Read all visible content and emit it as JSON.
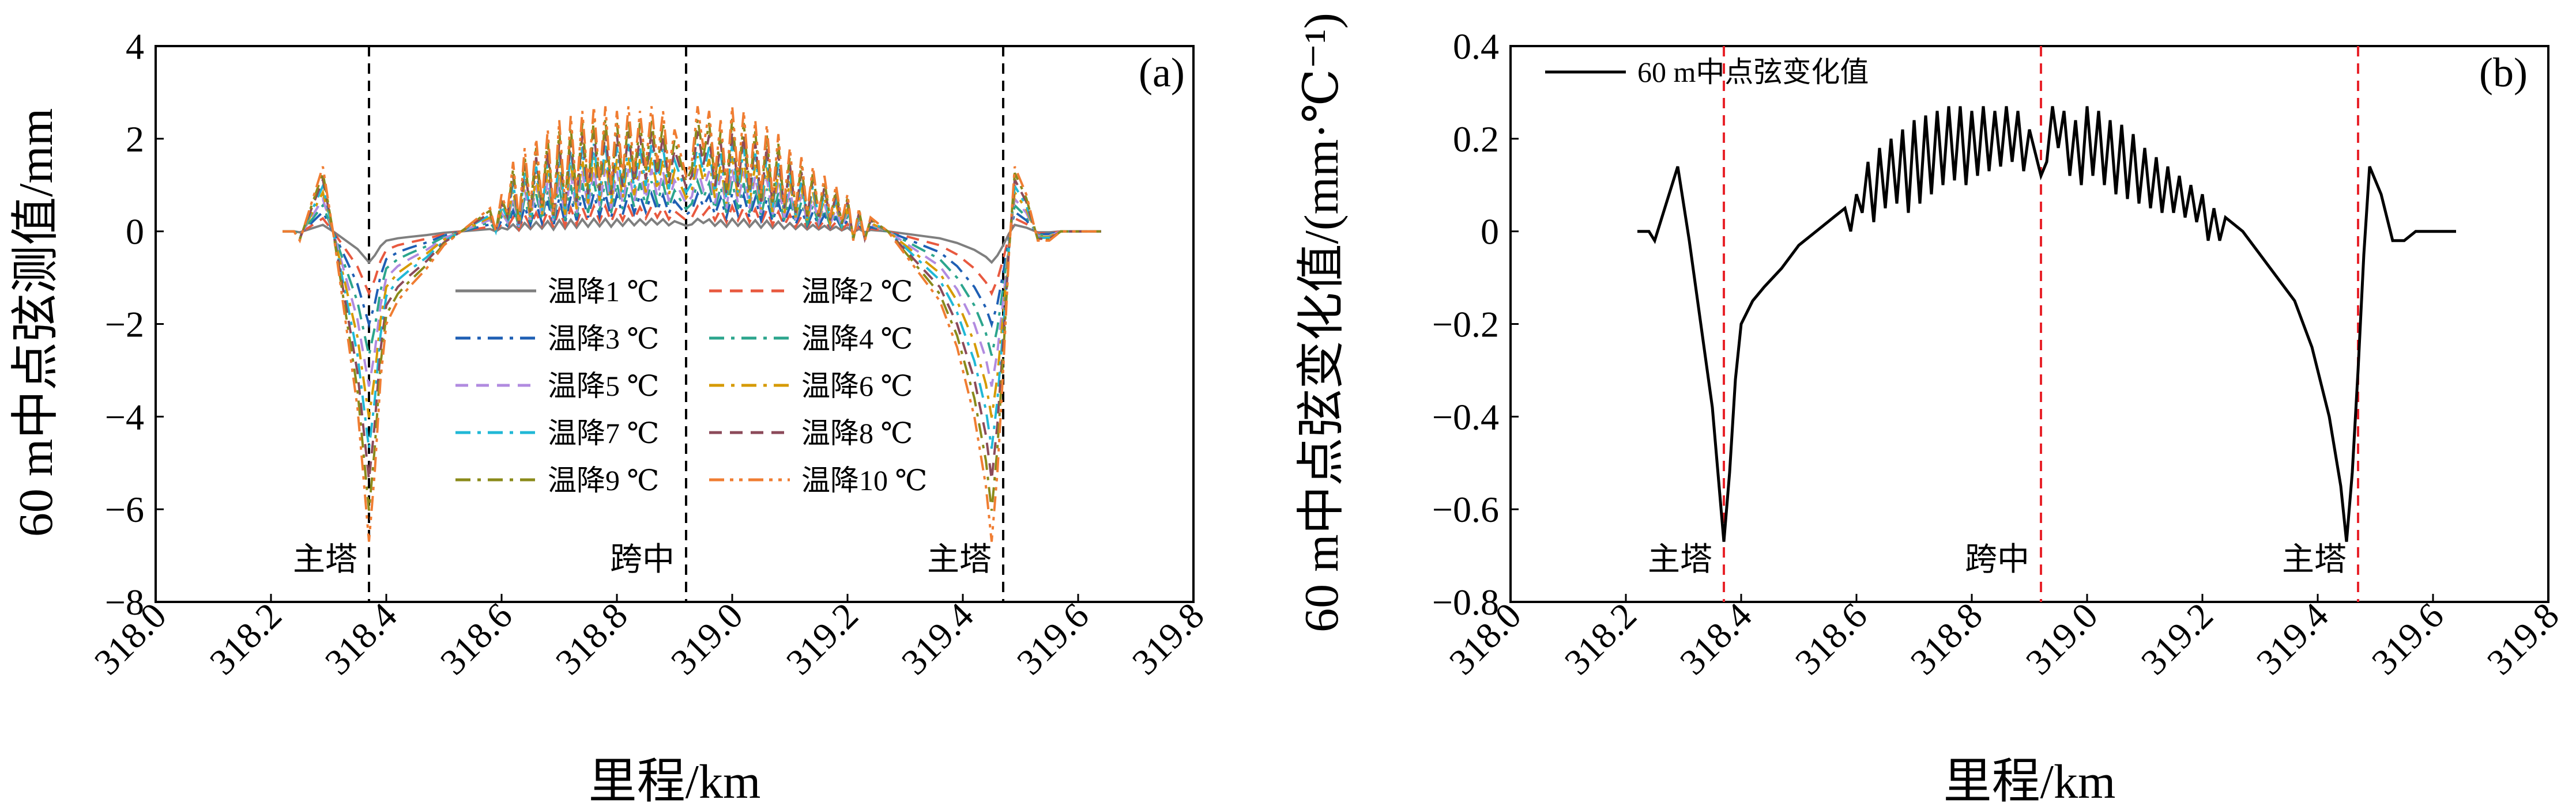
{
  "figure": {
    "panels": [
      "a",
      "b"
    ]
  },
  "chart_data": [
    {
      "type": "line",
      "panel_label": "(a)",
      "xlabel": "里程/km",
      "ylabel": "60 m中点弦测值/mm",
      "xlim": [
        318.0,
        319.8
      ],
      "ylim": [
        -8,
        4
      ],
      "xticks": [
        "318.0",
        "318.2",
        "318.4",
        "318.6",
        "318.8",
        "319.0",
        "319.2",
        "319.4",
        "319.6",
        "319.8"
      ],
      "yticks": [
        "4",
        "2",
        "0",
        "−2",
        "−4",
        "−6",
        "−8"
      ],
      "vlines": [
        {
          "x": 318.37,
          "label": "主塔",
          "color": "#000000"
        },
        {
          "x": 318.92,
          "label": "跨中",
          "color": "#000000"
        },
        {
          "x": 319.47,
          "label": "主塔",
          "color": "#000000"
        }
      ],
      "legend_position": "center-left",
      "x_range_of_data": [
        318.22,
        319.64
      ],
      "series": [
        {
          "name": "温降1 ℃",
          "scale": 1,
          "color": "#7f7f7f",
          "dash": "solid"
        },
        {
          "name": "温降2 ℃",
          "scale": 2,
          "color": "#e8593f",
          "dash": "dashed"
        },
        {
          "name": "温降3 ℃",
          "scale": 3,
          "color": "#1f5fb4",
          "dash": "dashdot"
        },
        {
          "name": "温降4 ℃",
          "scale": 4,
          "color": "#2ca58d",
          "dash": "dashdot"
        },
        {
          "name": "温降5 ℃",
          "scale": 5,
          "color": "#b18be0",
          "dash": "dashed"
        },
        {
          "name": "温降6 ℃",
          "scale": 6,
          "color": "#d69a00",
          "dash": "dashdot"
        },
        {
          "name": "温降7 ℃",
          "scale": 7,
          "color": "#21b8d6",
          "dash": "dashdot"
        },
        {
          "name": "温降8 ℃",
          "scale": 8,
          "color": "#8c4a5a",
          "dash": "dashed"
        },
        {
          "name": "温降9 ℃",
          "scale": 9,
          "color": "#8a8a1a",
          "dash": "dashdot"
        },
        {
          "name": "温降10 ℃",
          "scale": 10,
          "color": "#f07d32",
          "dash": "dashdotdot"
        }
      ],
      "base_profile_note": "each series = base profile (panel b) × scale"
    },
    {
      "type": "line",
      "panel_label": "(b)",
      "xlabel": "里程/km",
      "ylabel": "60 m中点弦变化值/(mm·℃⁻¹)",
      "xlim": [
        318.0,
        319.8
      ],
      "ylim": [
        -0.8,
        0.4
      ],
      "xticks": [
        "318.0",
        "318.2",
        "318.4",
        "318.6",
        "318.8",
        "319.0",
        "319.2",
        "319.4",
        "319.6",
        "319.8"
      ],
      "yticks": [
        "0.4",
        "0.2",
        "0",
        "−0.2",
        "−0.4",
        "−0.6",
        "−0.8"
      ],
      "vlines": [
        {
          "x": 318.37,
          "label": "主塔",
          "color": "#e8232a"
        },
        {
          "x": 318.92,
          "label": "跨中",
          "color": "#e8232a"
        },
        {
          "x": 319.47,
          "label": "主塔",
          "color": "#e8232a"
        }
      ],
      "legend": [
        "60 m中点弦变化值"
      ],
      "legend_position": "top-left",
      "series": [
        {
          "name": "60 m中点弦变化值",
          "color": "#000000",
          "x": [
            318.22,
            318.24,
            318.25,
            318.27,
            318.29,
            318.31,
            318.33,
            318.35,
            318.37,
            318.38,
            318.39,
            318.4,
            318.42,
            318.44,
            318.47,
            318.5,
            318.53,
            318.56,
            318.58,
            318.59,
            318.6,
            318.61,
            318.62,
            318.63,
            318.64,
            318.65,
            318.66,
            318.67,
            318.68,
            318.69,
            318.7,
            318.71,
            318.72,
            318.73,
            318.74,
            318.75,
            318.76,
            318.77,
            318.78,
            318.79,
            318.8,
            318.81,
            318.82,
            318.83,
            318.84,
            318.85,
            318.86,
            318.87,
            318.88,
            318.89,
            318.9,
            318.91,
            318.92,
            318.93,
            318.94,
            318.95,
            318.96,
            318.97,
            318.98,
            318.99,
            319.0,
            319.01,
            319.02,
            319.03,
            319.04,
            319.05,
            319.06,
            319.07,
            319.08,
            319.09,
            319.1,
            319.11,
            319.12,
            319.13,
            319.14,
            319.15,
            319.16,
            319.17,
            319.18,
            319.19,
            319.2,
            319.21,
            319.22,
            319.23,
            319.24,
            319.25,
            319.27,
            319.3,
            319.33,
            319.36,
            319.39,
            319.42,
            319.44,
            319.45,
            319.46,
            319.47,
            319.48,
            319.49,
            319.51,
            319.53,
            319.55,
            319.57,
            319.59,
            319.61,
            319.64
          ],
          "y": [
            0,
            0,
            -0.02,
            0.06,
            0.14,
            -0.02,
            -0.2,
            -0.38,
            -0.67,
            -0.52,
            -0.32,
            -0.2,
            -0.15,
            -0.12,
            -0.08,
            -0.03,
            0.0,
            0.03,
            0.05,
            0.0,
            0.08,
            0.04,
            0.15,
            0.02,
            0.18,
            0.05,
            0.2,
            0.06,
            0.22,
            0.04,
            0.24,
            0.06,
            0.25,
            0.08,
            0.26,
            0.1,
            0.27,
            0.11,
            0.27,
            0.1,
            0.26,
            0.12,
            0.27,
            0.13,
            0.26,
            0.14,
            0.27,
            0.15,
            0.26,
            0.13,
            0.22,
            0.17,
            0.12,
            0.15,
            0.27,
            0.18,
            0.26,
            0.12,
            0.24,
            0.1,
            0.27,
            0.12,
            0.26,
            0.1,
            0.24,
            0.08,
            0.23,
            0.07,
            0.21,
            0.06,
            0.18,
            0.05,
            0.16,
            0.04,
            0.14,
            0.04,
            0.12,
            0.03,
            0.1,
            0.02,
            0.08,
            -0.02,
            0.05,
            -0.02,
            0.03,
            0.02,
            0.0,
            -0.05,
            -0.1,
            -0.15,
            -0.25,
            -0.4,
            -0.55,
            -0.67,
            -0.52,
            -0.3,
            -0.05,
            0.14,
            0.08,
            -0.02,
            -0.02,
            0.0,
            0.0,
            0.0,
            0.0
          ]
        }
      ]
    }
  ]
}
